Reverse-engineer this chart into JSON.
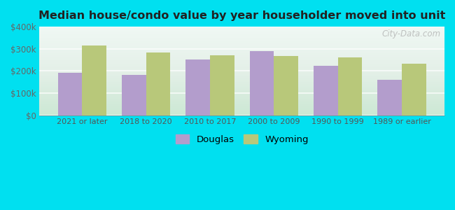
{
  "title": "Median house/condo value by year householder moved into unit",
  "categories": [
    "2021 or later",
    "2018 to 2020",
    "2010 to 2017",
    "2000 to 2009",
    "1990 to 1999",
    "1989 or earlier"
  ],
  "douglas_values": [
    193000,
    182000,
    251000,
    290000,
    222000,
    160000
  ],
  "wyoming_values": [
    315000,
    282000,
    271000,
    268000,
    260000,
    233000
  ],
  "douglas_color": "#b39dcc",
  "wyoming_color": "#b8c87a",
  "background_outer": "#00e0f0",
  "background_inner_top": "#e8f4f0",
  "background_inner_bottom": "#d4edda",
  "ylim": [
    0,
    400000
  ],
  "yticks": [
    0,
    100000,
    200000,
    300000,
    400000
  ],
  "ytick_labels": [
    "$0",
    "$100k",
    "$200k",
    "$300k",
    "$400k"
  ],
  "watermark": "City-Data.com",
  "legend_labels": [
    "Douglas",
    "Wyoming"
  ],
  "bar_width": 0.38
}
